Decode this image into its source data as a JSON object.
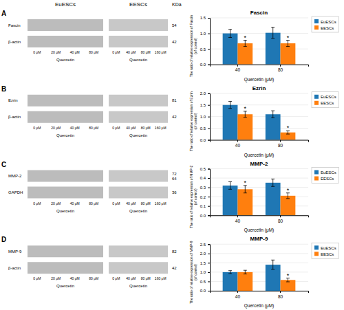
{
  "chart_data": [
    {
      "type": "bar",
      "title": "Fascin",
      "ylabel": "The ratio of relative expression of Fascin\n(of control)",
      "xlabel": "Quercetin (μM)",
      "categories": [
        "40",
        "80"
      ],
      "series": [
        {
          "name": "EuESCs",
          "values": [
            1.0,
            1.02
          ],
          "errors": [
            0.13,
            0.18
          ]
        },
        {
          "name": "EESCs",
          "values": [
            0.68,
            0.68
          ],
          "errors": [
            0.1,
            0.1
          ]
        }
      ],
      "ylim": [
        0,
        1.5
      ],
      "yticks": [
        {
          "value": 0,
          "label": "0.0"
        },
        0.5,
        {
          "value": 1,
          "label": "1.0"
        },
        1.5
      ],
      "grid": true,
      "legend": "right",
      "annotations": [
        {
          "text": "*",
          "series": "EESCs",
          "category": "40"
        },
        {
          "text": "*",
          "series": "EESCs",
          "category": "80"
        }
      ],
      "blot": {
        "header": {
          "columns": [
            "EuESCs",
            "EESCs"
          ],
          "kda": "KDa"
        },
        "panel": "A",
        "rows": [
          {
            "label": "Fascin",
            "kda": [
              "54"
            ]
          },
          {
            "label": "β-actin",
            "kda": [
              "42"
            ]
          }
        ],
        "groups": [
          {
            "concentrations": [
              "0 μM",
              "20 μM",
              "40 μM",
              "80 μM"
            ],
            "treatment": "Quercetin"
          },
          {
            "concentrations": [
              "0 μM",
              "40 μM",
              "80 μM",
              "160 μM"
            ],
            "treatment": "Quercetin"
          }
        ]
      }
    },
    {
      "type": "bar",
      "title": "Ezrin",
      "ylabel": "The ratio of relative expression of Ezrin\n(of control)",
      "xlabel": "Quercetin (μM)",
      "categories": [
        "40",
        "80"
      ],
      "series": [
        {
          "name": "EuESCs",
          "values": [
            1.5,
            1.1
          ],
          "errors": [
            0.15,
            0.15
          ]
        },
        {
          "name": "EESCs",
          "values": [
            1.1,
            0.32
          ],
          "errors": [
            0.13,
            0.07
          ]
        }
      ],
      "ylim": [
        0,
        2.0
      ],
      "yticks": [
        {
          "value": 0,
          "label": "0.0"
        },
        0.5,
        {
          "value": 1,
          "label": "1.0"
        },
        1.5,
        {
          "value": 2,
          "label": "2.0"
        }
      ],
      "grid": true,
      "legend": "right",
      "annotations": [
        {
          "text": "*",
          "series": "EESCs",
          "category": "40"
        },
        {
          "text": "*",
          "series": "EESCs",
          "category": "80"
        }
      ],
      "blot": {
        "panel": "B",
        "rows": [
          {
            "label": "Ezrin",
            "kda": [
              "81"
            ]
          },
          {
            "label": "β-actin",
            "kda": [
              "42"
            ]
          }
        ],
        "groups": [
          {
            "concentrations": [
              "0 μM",
              "20 μM",
              "40 μM",
              "80 μM"
            ],
            "treatment": "Quercetin"
          },
          {
            "concentrations": [
              "0 μM",
              "40 μM",
              "80 μM",
              "160 μM"
            ],
            "treatment": "Quercetin"
          }
        ]
      }
    },
    {
      "type": "bar",
      "title": "MMP-2",
      "ylabel": "The ratio of relative expression of MMP-2\n(of control)",
      "xlabel": "Quercetin (μM)",
      "categories": [
        "40",
        "80"
      ],
      "series": [
        {
          "name": "EuESCs",
          "values": [
            0.32,
            0.35
          ],
          "errors": [
            0.04,
            0.04
          ]
        },
        {
          "name": "EESCs",
          "values": [
            0.28,
            0.21
          ],
          "errors": [
            0.04,
            0.03
          ]
        }
      ],
      "ylim": [
        0,
        0.5
      ],
      "yticks": [
        {
          "value": 0,
          "label": "0.0"
        },
        0.1,
        0.2,
        0.3,
        0.4,
        0.5
      ],
      "grid": true,
      "legend": "right",
      "annotations": [
        {
          "text": "*",
          "series": "EESCs",
          "category": "40"
        },
        {
          "text": "*",
          "series": "EESCs",
          "category": "80"
        }
      ],
      "blot": {
        "panel": "C",
        "rows": [
          {
            "label": "MMP-2",
            "kda": [
              "72",
              "64"
            ]
          },
          {
            "label": "GAPDH",
            "kda": [
              "36"
            ]
          }
        ],
        "groups": [
          {
            "concentrations": [
              "0 μM",
              "20 μM",
              "40 μM",
              "80 μM"
            ],
            "treatment": "Quercetin"
          },
          {
            "concentrations": [
              "0 μM",
              "40 μM",
              "80 μM",
              "160 μM"
            ],
            "treatment": "Quercetin"
          }
        ]
      }
    },
    {
      "type": "bar",
      "title": "MMP-9",
      "ylabel": "The ratio of relative expression of MMP-9\n(of control)",
      "xlabel": "Quercetin (μM)",
      "categories": [
        "40",
        "80"
      ],
      "series": [
        {
          "name": "EuESCs",
          "values": [
            1.0,
            1.4
          ],
          "errors": [
            0.08,
            0.25
          ]
        },
        {
          "name": "EESCs",
          "values": [
            1.0,
            0.58
          ],
          "errors": [
            0.1,
            0.1
          ]
        }
      ],
      "ylim": [
        0,
        2.5
      ],
      "yticks": [
        {
          "value": 0,
          "label": "0.0"
        },
        0.5,
        {
          "value": 1,
          "label": "1.0"
        },
        1.5,
        {
          "value": 2,
          "label": "2.0"
        },
        2.5
      ],
      "grid": true,
      "legend": "right",
      "annotations": [
        {
          "text": "*",
          "series": "EESCs",
          "category": "80"
        }
      ],
      "blot": {
        "panel": "D",
        "rows": [
          {
            "label": "MMP-9",
            "kda": [
              "82"
            ]
          },
          {
            "label": "β-actin",
            "kda": [
              "42"
            ]
          }
        ],
        "groups": [
          {
            "concentrations": [
              "0 μM",
              "20 μM",
              "40 μM",
              "80 μM"
            ],
            "treatment": "Quercetin"
          },
          {
            "concentrations": [
              "0 μM",
              "40 μM",
              "80 μM",
              "160 μM"
            ],
            "treatment": "Quercetin"
          }
        ]
      }
    }
  ]
}
